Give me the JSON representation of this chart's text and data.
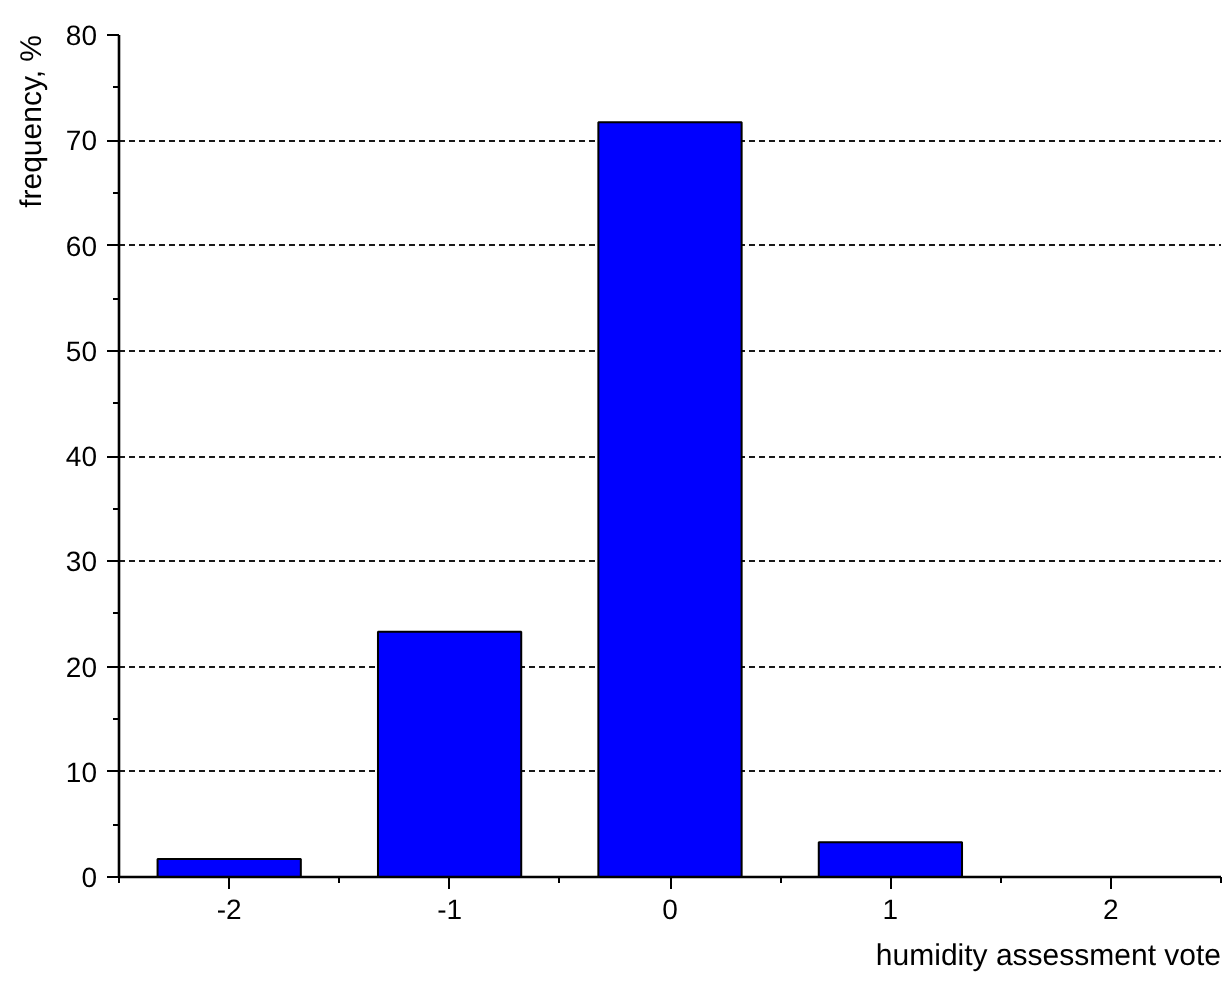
{
  "chart_data": {
    "type": "bar",
    "xlabel": "humidity assessment vote",
    "ylabel": "frequency, %",
    "categories": [
      "-2",
      "-1",
      "0",
      "1",
      "2"
    ],
    "values": [
      1.7,
      23.3,
      71.7,
      3.3,
      null
    ],
    "color": "#0000ff",
    "ylim": [
      0,
      80
    ],
    "yticks": [
      0,
      10,
      20,
      30,
      40,
      50,
      60,
      70,
      80
    ],
    "grid": "y"
  }
}
